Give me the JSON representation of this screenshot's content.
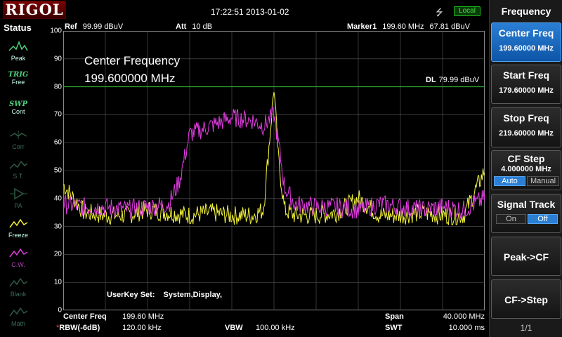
{
  "header": {
    "brand": "RIGOL",
    "datetime": "17:22:51 2013-01-02",
    "usb_icon": "usb-icon",
    "remote_mode": "Local"
  },
  "status": {
    "title": "Status",
    "items": [
      {
        "label": "Peak",
        "icon": "peak-icon",
        "state": "active"
      },
      {
        "title": "TRIG",
        "label": "Free",
        "icon": "trig-icon",
        "state": "active"
      },
      {
        "title": "SWP",
        "label": "Cont",
        "icon": "sweep-icon",
        "state": "active"
      },
      {
        "label": "Corr",
        "icon": "corr-icon",
        "state": "dim"
      },
      {
        "label": "S.T.",
        "icon": "st-icon",
        "state": "dim"
      },
      {
        "label": "PA",
        "icon": "pa-icon",
        "state": "dim"
      },
      {
        "label": "Freeze",
        "icon": "freeze-icon",
        "state": "active"
      },
      {
        "label": "C.W.",
        "icon": "cw-icon",
        "state": "cw"
      },
      {
        "label": "Blank",
        "icon": "blank-icon",
        "state": "dim"
      },
      {
        "label": "Math",
        "icon": "math-icon",
        "state": "dim"
      }
    ]
  },
  "display": {
    "ref_key": "Ref",
    "ref_value": "99.99 dBuV",
    "att_key": "Att",
    "att_value": "10 dB",
    "marker_key": "Marker1",
    "marker_freq": "199.60 MHz",
    "marker_level": "67.81 dBuV",
    "cf_title": "Center Frequency",
    "cf_value": "199.600000 MHz",
    "dl_key": "DL",
    "dl_value": "79.99 dBuV",
    "dl_level": 80,
    "userkey_key": "UserKey Set:",
    "userkey_value": "System,Display,",
    "y_ticks": [
      "100",
      "90",
      "80",
      "70",
      "60",
      "50",
      "40",
      "30",
      "20",
      "10",
      "0"
    ]
  },
  "footer": {
    "cf_key": "Center Freq",
    "cf_value": "199.60 MHz",
    "rbw_star": "*",
    "rbw_key": "RBW(-6dB)",
    "rbw_value": "120.00 kHz",
    "vbw_key": "VBW",
    "vbw_value": "100.00 kHz",
    "span_key": "Span",
    "span_value": "40.000 MHz",
    "swt_key": "SWT",
    "swt_value": "10.000 ms"
  },
  "colors": {
    "trace1": "#f4f43a",
    "trace2": "#e23ce2",
    "display_line": "#2fbf2f",
    "grid": "#5a5a5a",
    "accent": "#2a7fd4"
  },
  "chart_data": {
    "type": "line",
    "x_range_mhz": [
      179.6,
      219.6
    ],
    "ylim": [
      0,
      100
    ],
    "series": [
      {
        "color": "#f4f43a",
        "x": [
          179.6,
          181.6,
          183.6,
          185.6,
          187.6,
          189.6,
          191.6,
          193.6,
          195.6,
          197.6,
          198.6,
          199.2,
          199.6,
          200.0,
          200.6,
          201.6,
          203.6,
          205.6,
          207.6,
          209.6,
          211.6,
          213.6,
          215.6,
          217.6,
          219.6
        ],
        "values": [
          45,
          35,
          34,
          34,
          36,
          35,
          34,
          35,
          34,
          34,
          36,
          62,
          80,
          55,
          36,
          34,
          34,
          35,
          40,
          34,
          34,
          35,
          34,
          34,
          50
        ]
      },
      {
        "color": "#e23ce2",
        "x": [
          179.6,
          181.6,
          183.6,
          185.6,
          187.6,
          189.6,
          190.6,
          191.6,
          193.6,
          195.6,
          197.6,
          198.6,
          199.6,
          200.1,
          200.6,
          201.6,
          203.6,
          205.6,
          207.6,
          209.6,
          211.6,
          213.6,
          215.6,
          217.6,
          219.6
        ],
        "values": [
          38,
          37,
          37,
          36,
          37,
          38,
          46,
          63,
          66,
          69,
          68,
          66,
          70,
          58,
          44,
          38,
          37,
          37,
          36,
          38,
          37,
          36,
          37,
          36,
          40
        ]
      }
    ]
  },
  "menu": {
    "title": "Frequency",
    "center_freq_label": "Center Freq",
    "center_freq_value": "199.60000 MHz",
    "start_freq_label": "Start Freq",
    "start_freq_value": "179.60000 MHz",
    "stop_freq_label": "Stop Freq",
    "stop_freq_value": "219.60000 MHz",
    "cf_step_label": "CF Step",
    "cf_step_value": "4.000000 MHz",
    "cf_step_auto": "Auto",
    "cf_step_manual": "Manual",
    "signal_track_label": "Signal Track",
    "signal_track_on": "On",
    "signal_track_off": "Off",
    "peak_cf_label": "Peak->CF",
    "cf_step2_label": "CF->Step",
    "page": "1/1"
  }
}
